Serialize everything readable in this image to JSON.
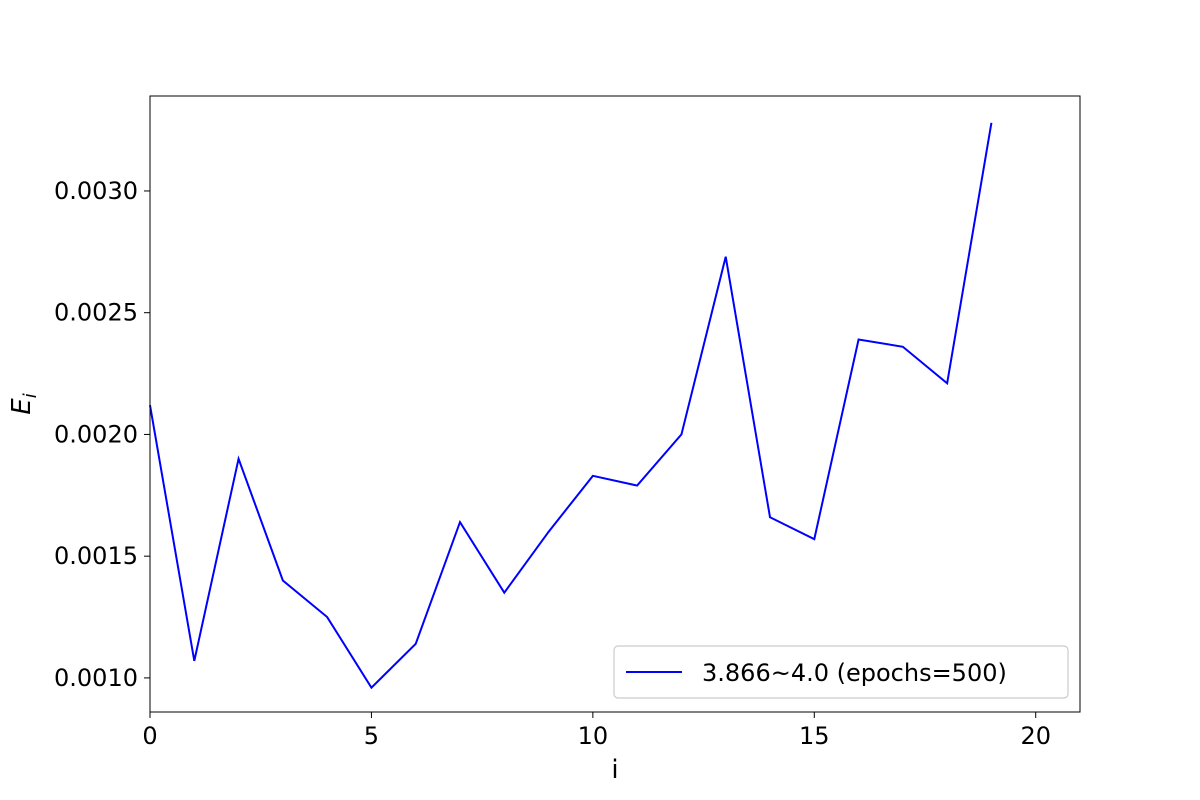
{
  "chart_data": {
    "type": "line",
    "xlabel": "i",
    "ylabel_main": "E",
    "ylabel_sub": "i",
    "xlim": [
      0,
      21
    ],
    "ylim": [
      0.00086,
      0.00339
    ],
    "xticks": [
      0,
      5,
      10,
      15,
      20
    ],
    "xtick_labels": [
      "0",
      "5",
      "10",
      "15",
      "20"
    ],
    "yticks": [
      0.001,
      0.0015,
      0.002,
      0.0025,
      0.003
    ],
    "ytick_labels": [
      "0.0010",
      "0.0015",
      "0.0020",
      "0.0025",
      "0.0030"
    ],
    "grid": false,
    "legend_position": "lower-right",
    "series": [
      {
        "name": "3.866~4.0 (epochs=500)",
        "color": "#0000ff",
        "x": [
          0,
          1,
          2,
          3,
          4,
          5,
          6,
          7,
          8,
          9,
          10,
          11,
          12,
          13,
          14,
          15,
          16,
          17,
          18,
          19
        ],
        "values": [
          0.00212,
          0.00107,
          0.0019,
          0.0014,
          0.00125,
          0.00096,
          0.00114,
          0.00164,
          0.00135,
          0.0016,
          0.00183,
          0.00179,
          0.002,
          0.00273,
          0.00166,
          0.00157,
          0.00239,
          0.00236,
          0.00221,
          0.00328
        ]
      }
    ]
  }
}
